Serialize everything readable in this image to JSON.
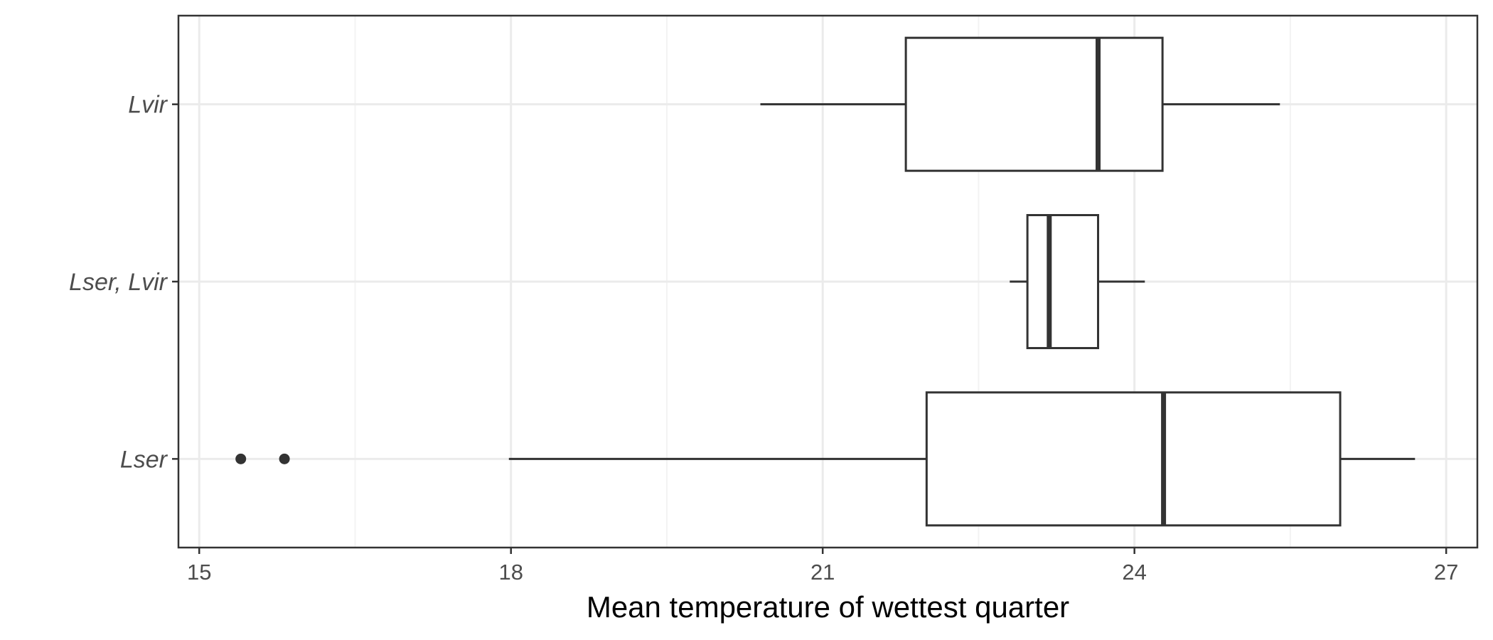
{
  "chart_data": {
    "type": "boxplot",
    "orientation": "horizontal",
    "xlabel": "Mean temperature of wettest quarter",
    "ylabel": "",
    "xlim": [
      14.8,
      27.3
    ],
    "xticks": [
      15,
      18,
      21,
      24,
      27
    ],
    "xtick_labels": [
      "15",
      "18",
      "21",
      "24",
      "27"
    ],
    "grid": true,
    "categories": [
      "Lvir",
      "Lser, Lvir",
      "Lser"
    ],
    "boxes": [
      {
        "category": "Lvir",
        "whisker_low": 20.4,
        "q1": 21.8,
        "median": 23.65,
        "q3": 24.27,
        "whisker_high": 25.4,
        "outliers": []
      },
      {
        "category": "Lser, Lvir",
        "whisker_low": 22.8,
        "q1": 22.97,
        "median": 23.18,
        "q3": 23.65,
        "whisker_high": 24.1,
        "outliers": []
      },
      {
        "category": "Lser",
        "whisker_low": 17.98,
        "q1": 22.0,
        "median": 24.28,
        "q3": 25.98,
        "whisker_high": 26.7,
        "outliers": [
          15.4,
          15.82
        ]
      }
    ]
  },
  "colors": {
    "box_stroke": "#333333",
    "box_fill": "#ffffff",
    "grid_major": "#ebebeb",
    "grid_minor": "#f3f3f3",
    "panel_border": "#333333",
    "outlier_fill": "#333333"
  }
}
